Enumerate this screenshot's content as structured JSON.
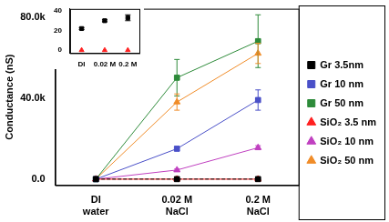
{
  "chart_data": [
    {
      "type": "line",
      "categories": [
        "DI water",
        "0.02 M NaCl",
        "0.2 M NaCl"
      ],
      "y_label": "Conductance (nS)",
      "ylim": [
        -3000,
        84000
      ],
      "yticks": [
        {
          "value": 0,
          "label": "0.0"
        },
        {
          "value": 40000,
          "label": "40.0k"
        },
        {
          "value": 80000,
          "label": "80.0k"
        }
      ],
      "grid": false,
      "legend": "right",
      "series": [
        {
          "name": "Gr 3.5nm",
          "color": "#000000",
          "marker": "square",
          "line_style": "dashed",
          "values": [
            22,
            30,
            33
          ],
          "errors": [
            1,
            1,
            3
          ]
        },
        {
          "name": "Gr 10 nm",
          "color": "#4a50c8",
          "marker": "square",
          "line_style": "solid",
          "values": [
            0,
            15000,
            39000
          ],
          "errors": [
            0,
            1000,
            5000
          ]
        },
        {
          "name": "Gr 50 nm",
          "color": "#2e8b3a",
          "marker": "square",
          "line_style": "solid",
          "values": [
            0,
            50000,
            68000
          ],
          "errors": [
            0,
            9000,
            13000
          ]
        },
        {
          "name": "SiO₂ 3.5 nm",
          "color": "#ff2020",
          "marker": "triangle",
          "line_style": "solid",
          "values": [
            0,
            0,
            0
          ],
          "errors": [
            0,
            0,
            0
          ]
        },
        {
          "name": "SiO₂ 10 nm",
          "color": "#c040c0",
          "marker": "triangle",
          "line_style": "solid",
          "values": [
            0,
            4500,
            15500
          ],
          "errors": [
            0,
            500,
            1000
          ]
        },
        {
          "name": "SiO₂ 50 nm",
          "color": "#f08c28",
          "marker": "triangle",
          "line_style": "solid",
          "values": [
            0,
            38000,
            62000
          ],
          "errors": [
            0,
            4000,
            5000
          ]
        }
      ]
    },
    {
      "type": "line",
      "categories": [
        "DI",
        "0.02 M",
        "0.2 M"
      ],
      "ylim": [
        -3,
        42
      ],
      "yticks": [
        0,
        20,
        40
      ],
      "grid": false,
      "series": [
        {
          "name": "Gr 3.5nm",
          "color": "#000000",
          "marker": "square",
          "line_style": "none",
          "values": [
            22,
            30,
            33
          ],
          "errors": [
            1,
            1,
            3
          ]
        },
        {
          "name": "SiO₂ 3.5 nm",
          "color": "#ff2020",
          "marker": "triangle",
          "line_style": "none",
          "values": [
            0,
            0,
            0
          ],
          "errors": [
            0,
            0,
            0
          ]
        }
      ]
    }
  ]
}
